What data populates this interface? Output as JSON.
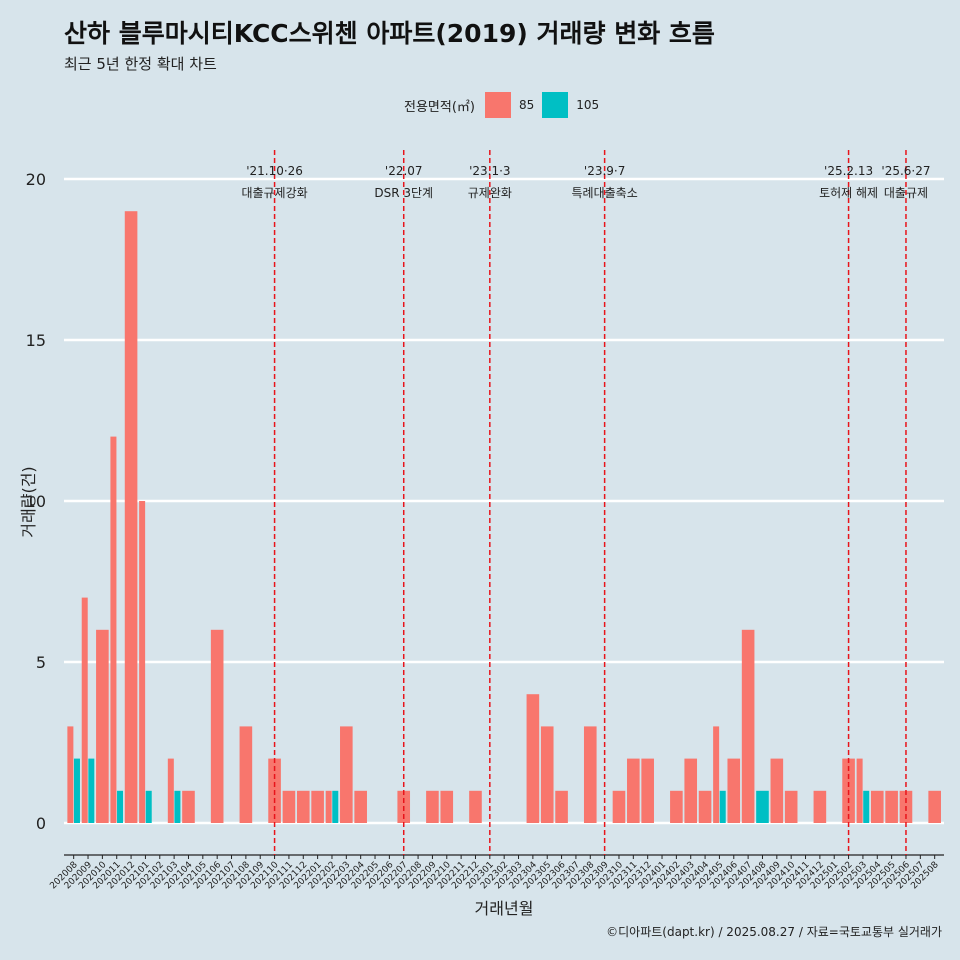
{
  "header": {
    "title": "산하 블루마시티KCC스위첸 아파트(2019) 거래량 변화 흐름",
    "subtitle": "최근 5년 한정 확대 차트"
  },
  "legend": {
    "title": "전용면적(㎡)",
    "items": [
      {
        "label": "85",
        "color": "#f8766d"
      },
      {
        "label": "105",
        "color": "#00bfc4"
      }
    ]
  },
  "caption": "©디아파트(dapt.kr) / 2025.08.27 / 자료=국토교통부 실거래가",
  "chart_data": {
    "type": "bar",
    "xlabel": "거래년월",
    "ylabel": "거래량(건)",
    "ylim": [
      0,
      20
    ],
    "yticks": [
      0,
      5,
      10,
      15,
      20
    ],
    "grid": true,
    "categories": [
      "202008",
      "202009",
      "202010",
      "202011",
      "202012",
      "202101",
      "202102",
      "202103",
      "202104",
      "202105",
      "202106",
      "202107",
      "202108",
      "202109",
      "202110",
      "202111",
      "202112",
      "202201",
      "202202",
      "202203",
      "202204",
      "202205",
      "202206",
      "202207",
      "202208",
      "202209",
      "202210",
      "202211",
      "202212",
      "202301",
      "202302",
      "202303",
      "202304",
      "202305",
      "202306",
      "202307",
      "202308",
      "202309",
      "202310",
      "202311",
      "202312",
      "202401",
      "202402",
      "202403",
      "202404",
      "202405",
      "202406",
      "202407",
      "202408",
      "202409",
      "202410",
      "202411",
      "202412",
      "202501",
      "202502",
      "202503",
      "202504",
      "202505",
      "202506",
      "202507",
      "202508"
    ],
    "series": [
      {
        "name": "85",
        "color": "#f8766d",
        "values": [
          3,
          7,
          6,
          12,
          19,
          10,
          0,
          2,
          1,
          0,
          6,
          0,
          3,
          0,
          2,
          1,
          1,
          1,
          1,
          3,
          1,
          0,
          0,
          1,
          0,
          1,
          1,
          0,
          1,
          0,
          0,
          0,
          4,
          3,
          1,
          0,
          3,
          0,
          1,
          2,
          2,
          0,
          1,
          2,
          1,
          3,
          2,
          6,
          0,
          2,
          1,
          0,
          1,
          0,
          2,
          2,
          1,
          1,
          1,
          0,
          1
        ]
      },
      {
        "name": "105",
        "color": "#00bfc4",
        "values": [
          2,
          2,
          0,
          1,
          0,
          1,
          0,
          1,
          0,
          0,
          0,
          0,
          0,
          0,
          0,
          0,
          0,
          0,
          1,
          0,
          0,
          0,
          0,
          0,
          0,
          0,
          0,
          0,
          0,
          0,
          0,
          0,
          0,
          0,
          0,
          0,
          0,
          0,
          0,
          0,
          0,
          0,
          0,
          0,
          0,
          1,
          0,
          0,
          1,
          0,
          0,
          0,
          0,
          0,
          0,
          1,
          0,
          0,
          0,
          0,
          0
        ]
      }
    ],
    "annotations": [
      {
        "month": "202110",
        "date": "'21.10·26",
        "text": "대출규제강화"
      },
      {
        "month": "202207",
        "date": "'22.07",
        "text": "DSR 3단계"
      },
      {
        "month": "202301",
        "date": "'23.1·3",
        "text": "규제완화"
      },
      {
        "month": "202309",
        "date": "'23.9·7",
        "text": "특례대출축소"
      },
      {
        "month": "202502",
        "date": "'25.2.13",
        "text": "토허제 해제"
      },
      {
        "month": "202506",
        "date": "'25.6·27",
        "text": "대출규제"
      }
    ],
    "annotation_color": "#e8141b"
  }
}
